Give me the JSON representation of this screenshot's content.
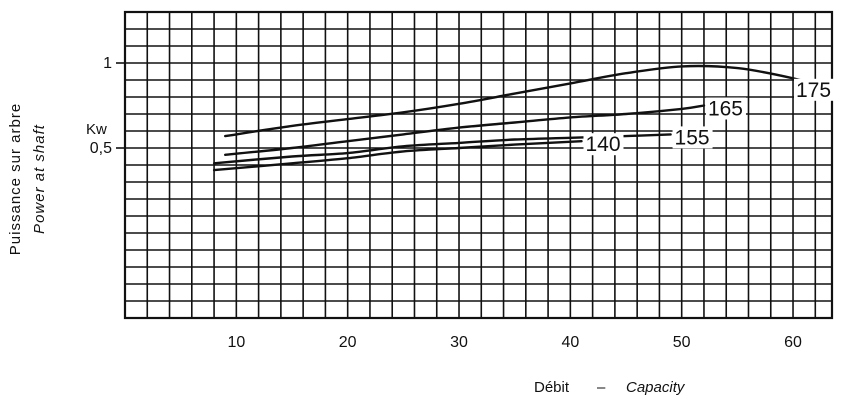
{
  "chart_data": {
    "type": "line",
    "xlabel_fr": "Débit",
    "xlabel_sep": "–",
    "xlabel_en": "Capacity",
    "ylabel_fr": "Puissance sur arbre",
    "ylabel_en": "Power at shaft",
    "yunit": "Kw",
    "xlim": [
      0,
      63.5
    ],
    "ylim": [
      -0.5,
      1.3
    ],
    "xticks": [
      10,
      20,
      30,
      40,
      50,
      60
    ],
    "xtick_labels": [
      "10",
      "20",
      "30",
      "40",
      "50",
      "60"
    ],
    "yticks": [
      0.5,
      1
    ],
    "ytick_labels": [
      "0,5",
      "1"
    ],
    "grid": true,
    "series": [
      {
        "name": "175",
        "x": [
          9,
          15,
          20,
          25,
          30,
          35,
          40,
          45,
          50,
          55,
          60,
          62.5
        ],
        "y": [
          0.57,
          0.63,
          0.67,
          0.71,
          0.76,
          0.82,
          0.88,
          0.94,
          0.98,
          0.97,
          0.91,
          0.86
        ]
      },
      {
        "name": "165",
        "x": [
          9,
          15,
          20,
          25,
          30,
          35,
          40,
          45,
          50,
          52
        ],
        "y": [
          0.46,
          0.5,
          0.54,
          0.58,
          0.62,
          0.65,
          0.68,
          0.7,
          0.73,
          0.75
        ]
      },
      {
        "name": "155",
        "x": [
          8,
          15,
          20,
          25,
          30,
          35,
          40,
          45,
          49
        ],
        "y": [
          0.41,
          0.45,
          0.47,
          0.51,
          0.53,
          0.55,
          0.56,
          0.57,
          0.58
        ]
      },
      {
        "name": "140",
        "x": [
          8,
          15,
          20,
          25,
          30,
          35,
          41
        ],
        "y": [
          0.37,
          0.41,
          0.44,
          0.48,
          0.5,
          0.52,
          0.54
        ]
      }
    ],
    "colors": {
      "line": "#111111",
      "grid": "#111111",
      "background": "#ffffff"
    }
  }
}
